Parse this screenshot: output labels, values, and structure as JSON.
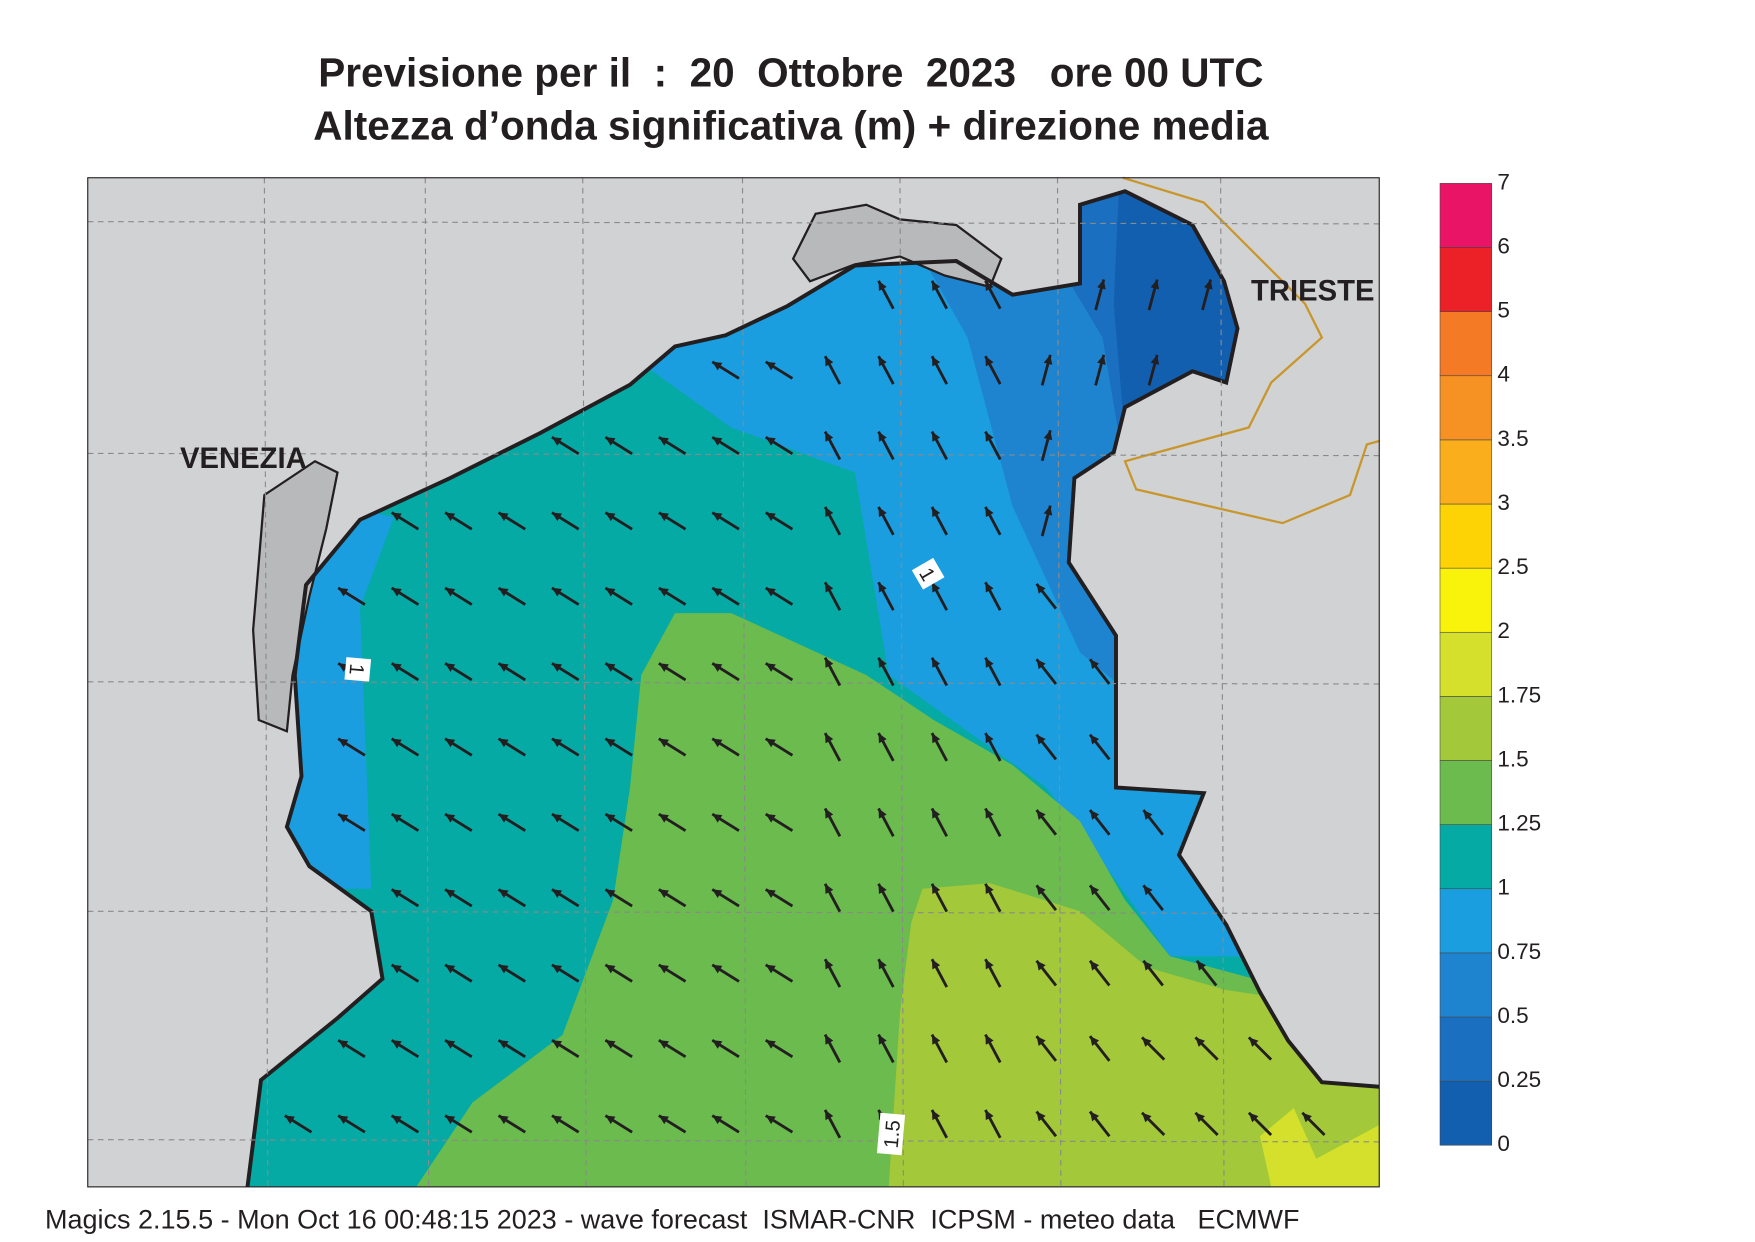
{
  "title": {
    "line1": "Previsione per il  :  20  Ottobre  2023   ore 00 UTC",
    "line2": "Altezza d’onda significativa (m) + direzione media"
  },
  "map": {
    "places": [
      "VENEZIA",
      "TRIESTE"
    ],
    "contour_labels": [
      "1",
      "1",
      "1.5"
    ]
  },
  "legend": {
    "levels": [
      "0",
      "0.25",
      "0.5",
      "0.75",
      "1",
      "1.25",
      "1.5",
      "1.75",
      "2",
      "2.5",
      "3",
      "3.5",
      "4",
      "5",
      "6",
      "7"
    ],
    "colors": [
      "#135faf",
      "#1b6fc0",
      "#1f84cf",
      "#1a9ee0",
      "#05aaa5",
      "#6bbb4f",
      "#a3c83a",
      "#d4e02b",
      "#f9f20b",
      "#fdd306",
      "#fbae1c",
      "#f69223",
      "#f47a25",
      "#ec2127",
      "#ea1466"
    ]
  },
  "footer": "Magics 2.15.5 - Mon Oct 16 00:48:15 2023 - wave forecast  ISMAR-CNR  ICPSM - meteo data   ECMWF"
}
